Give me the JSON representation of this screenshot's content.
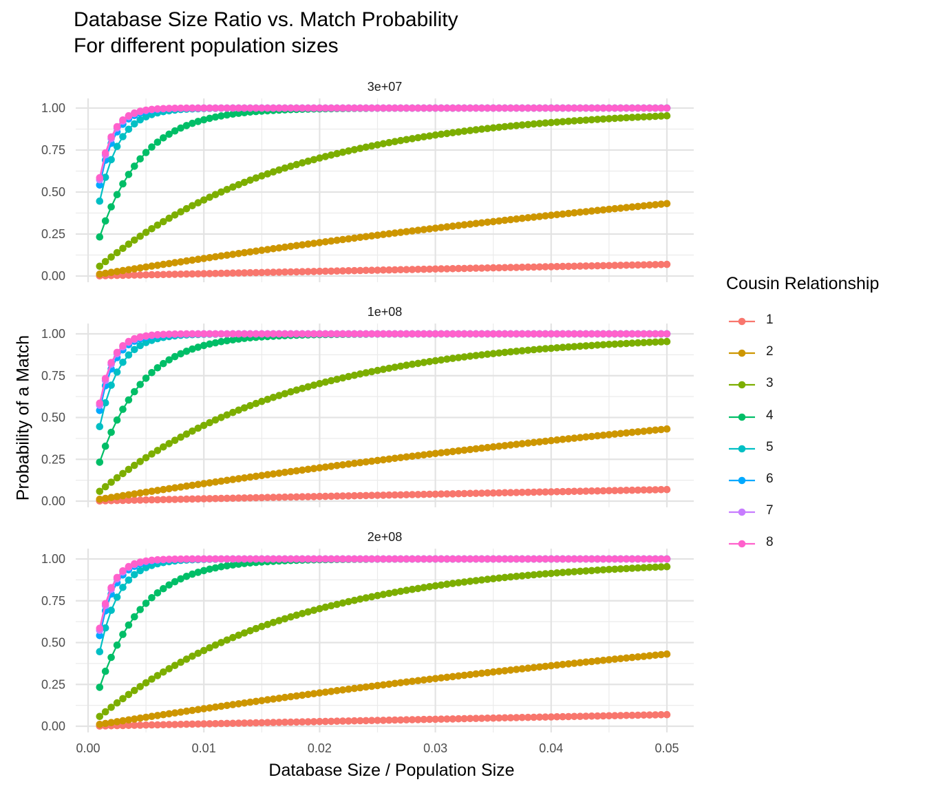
{
  "chart_data": {
    "type": "scatter",
    "title": "Database Size Ratio vs. Match Probability",
    "subtitle": "For different population sizes",
    "xlabel": "Database Size / Population Size",
    "ylabel": "Probability of a Match",
    "xlim": [
      0.0,
      0.05
    ],
    "ylim": [
      0.0,
      1.0
    ],
    "x_ticks": [
      "0.00",
      "0.01",
      "0.02",
      "0.03",
      "0.04",
      "0.05"
    ],
    "y_ticks": [
      "0.00",
      "0.25",
      "0.50",
      "0.75",
      "1.00"
    ],
    "x_range": {
      "start": 0.001,
      "end": 0.05,
      "step": 0.0005
    },
    "legend_title": "Cousin Relationship",
    "legend_position": "right",
    "facets": [
      "3e+07",
      "1e+08",
      "2e+08"
    ],
    "series": [
      {
        "name": "1",
        "color": "#F8766D",
        "model": "1-(1-x)^k",
        "k": 1.4
      },
      {
        "name": "2",
        "color": "#CD9600",
        "model": "1-(1-x)^k",
        "k": 11
      },
      {
        "name": "3",
        "color": "#7CAE00",
        "model": "1-(1-x)^k",
        "k": 60
      },
      {
        "name": "4",
        "color": "#00BE67",
        "model": "1-(1-x)^k",
        "k": 265
      },
      {
        "name": "5",
        "color": "#00BFC4",
        "model": "1-(1-x)^k",
        "k": 590
      },
      {
        "name": "6",
        "color": "#00A9FF",
        "model": "1-(1-x)^k",
        "k": 780
      },
      {
        "name": "7",
        "color": "#C77CFF",
        "model": "1-(1-x)^k",
        "k": 850
      },
      {
        "name": "8",
        "color": "#FF61CC",
        "model": "1-(1-x)^k",
        "k": 880
      }
    ]
  }
}
